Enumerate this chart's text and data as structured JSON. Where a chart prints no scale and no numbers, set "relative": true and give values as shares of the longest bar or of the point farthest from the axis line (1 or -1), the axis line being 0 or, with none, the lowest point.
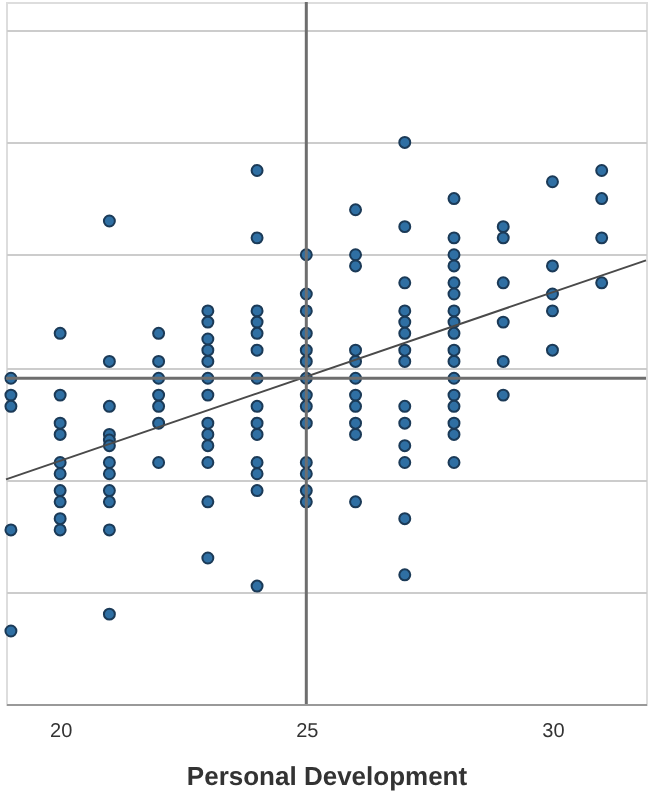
{
  "chart_data": {
    "type": "scatter",
    "xlabel": "Personal Development",
    "relative": true,
    "xlim": [
      18.9,
      31.9
    ],
    "xticks": [
      20,
      25,
      30
    ],
    "grid": "y",
    "series": [
      {
        "color": "#2f6fa3",
        "marker": "circle",
        "x": [
          19,
          19,
          19,
          19,
          19,
          20,
          20,
          20,
          20,
          20,
          20,
          20,
          20,
          20,
          20,
          21,
          21,
          21,
          21,
          21,
          21,
          21,
          21,
          21,
          21,
          21,
          21,
          22,
          22,
          22,
          22,
          22,
          22,
          22,
          23,
          23,
          23,
          23,
          23,
          23,
          23,
          23,
          23,
          23,
          23,
          23,
          23,
          24,
          24,
          24,
          24,
          24,
          24,
          24,
          24,
          24,
          24,
          24,
          24,
          24,
          24,
          25,
          25,
          25,
          25,
          25,
          25,
          25,
          25,
          25,
          25,
          25,
          25,
          25,
          25,
          26,
          26,
          26,
          26,
          26,
          26,
          26,
          26,
          26,
          26,
          26,
          27,
          27,
          27,
          27,
          27,
          27,
          27,
          27,
          27,
          27,
          27,
          27,
          27,
          27,
          28,
          28,
          28,
          28,
          28,
          28,
          28,
          28,
          28,
          28,
          28,
          28,
          28,
          28,
          28,
          28,
          28,
          29,
          29,
          29,
          29,
          29,
          29,
          30,
          30,
          30,
          30,
          30,
          31,
          31,
          31,
          31
        ],
        "values": [
          0.58,
          0.55,
          0.53,
          0.31,
          0.13,
          0.66,
          0.55,
          0.5,
          0.48,
          0.43,
          0.41,
          0.38,
          0.36,
          0.33,
          0.31,
          0.86,
          0.61,
          0.53,
          0.48,
          0.47,
          0.46,
          0.43,
          0.41,
          0.38,
          0.36,
          0.31,
          0.16,
          0.66,
          0.61,
          0.58,
          0.55,
          0.53,
          0.5,
          0.43,
          0.7,
          0.68,
          0.65,
          0.63,
          0.61,
          0.58,
          0.55,
          0.5,
          0.48,
          0.46,
          0.43,
          0.36,
          0.26,
          0.95,
          0.83,
          0.7,
          0.68,
          0.66,
          0.63,
          0.58,
          0.53,
          0.5,
          0.48,
          0.43,
          0.41,
          0.38,
          0.21,
          0.8,
          0.73,
          0.7,
          0.66,
          0.63,
          0.61,
          0.58,
          0.55,
          0.53,
          0.5,
          0.43,
          0.41,
          0.38,
          0.36,
          0.88,
          0.8,
          0.78,
          0.63,
          0.61,
          0.58,
          0.55,
          0.53,
          0.5,
          0.48,
          0.36,
          1.0,
          0.85,
          0.75,
          0.7,
          0.68,
          0.66,
          0.63,
          0.61,
          0.53,
          0.5,
          0.46,
          0.43,
          0.33,
          0.23,
          0.9,
          0.83,
          0.8,
          0.78,
          0.75,
          0.73,
          0.7,
          0.68,
          0.66,
          0.63,
          0.61,
          0.58,
          0.55,
          0.53,
          0.5,
          0.48,
          0.43,
          0.85,
          0.83,
          0.75,
          0.68,
          0.61,
          0.55,
          0.93,
          0.78,
          0.73,
          0.7,
          0.63,
          0.95,
          0.9,
          0.83,
          0.75
        ]
      },
      {
        "type": "line",
        "marker": "none",
        "color": "#4a4a4a",
        "x": [
          18.9,
          31.9
        ],
        "values": [
          0.4,
          0.79
        ]
      }
    ],
    "ref_lines": [
      {
        "axis": "x",
        "value": 25,
        "color": "#6e6e6e"
      },
      {
        "axis": "y",
        "value": 0.58,
        "color": "#6e6e6e"
      }
    ]
  }
}
